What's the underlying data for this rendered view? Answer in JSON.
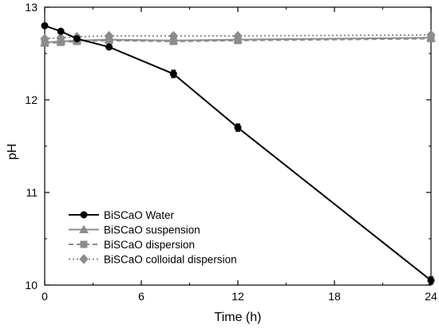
{
  "chart_data": {
    "type": "line",
    "xlabel": "Time (h)",
    "ylabel": "pH",
    "xlim": [
      0,
      24
    ],
    "ylim": [
      10,
      13
    ],
    "xticks": [
      0,
      6,
      12,
      18,
      24
    ],
    "yticks": [
      10,
      11,
      12,
      13
    ],
    "grid": false,
    "legend_position": "bottom-left",
    "series": [
      {
        "name": "BiSCaO Water",
        "color": "#000000",
        "line_style": "solid",
        "marker": "circle",
        "x": [
          0,
          1,
          2,
          4,
          8,
          12,
          24
        ],
        "y": [
          12.8,
          12.74,
          12.66,
          12.57,
          12.28,
          11.7,
          10.05
        ],
        "error": [
          0,
          0,
          0,
          0,
          0.04,
          0.04,
          0.04
        ]
      },
      {
        "name": "BiSCaO suspension",
        "color": "#8c8c8c",
        "line_style": "solid",
        "marker": "triangle",
        "x": [
          0,
          1,
          2,
          4,
          8,
          12,
          24
        ],
        "y": [
          12.62,
          12.63,
          12.64,
          12.65,
          12.64,
          12.65,
          12.67
        ],
        "error": [
          0,
          0,
          0,
          0,
          0,
          0,
          0
        ]
      },
      {
        "name": "BiSCaO dispersion",
        "color": "#8c8c8c",
        "line_style": "dashed",
        "marker": "square",
        "x": [
          0,
          1,
          2,
          4,
          8,
          12,
          24
        ],
        "y": [
          12.61,
          12.62,
          12.63,
          12.64,
          12.63,
          12.64,
          12.66
        ],
        "error": [
          0,
          0,
          0,
          0,
          0,
          0,
          0
        ]
      },
      {
        "name": "BiSCaO colloidal dispersion",
        "color": "#8c8c8c",
        "line_style": "dotted",
        "marker": "diamond",
        "x": [
          0,
          1,
          2,
          4,
          8,
          12,
          24
        ],
        "y": [
          12.66,
          12.67,
          12.68,
          12.69,
          12.69,
          12.69,
          12.7
        ],
        "error": [
          0,
          0,
          0,
          0,
          0,
          0,
          0
        ]
      }
    ]
  }
}
